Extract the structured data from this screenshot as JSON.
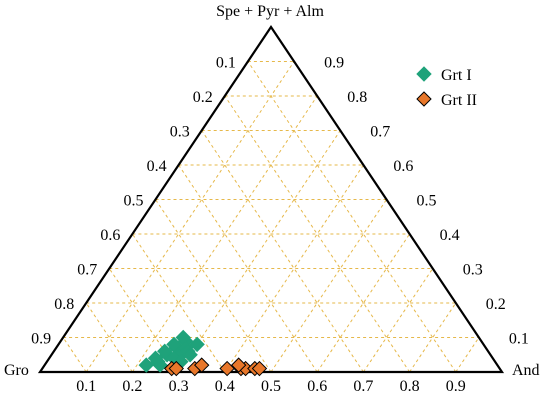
{
  "chart_data": {
    "type": "scatter",
    "subtype": "ternary",
    "apex_labels": {
      "top": "Spe + Pyr + Alm",
      "bottom_left": "Gro",
      "bottom_right": "And"
    },
    "ticks": {
      "bottom": [
        "0.1",
        "0.2",
        "0.3",
        "0.4",
        "0.5",
        "0.6",
        "0.7",
        "0.8",
        "0.9"
      ],
      "left": [
        "0.1",
        "0.2",
        "0.3",
        "0.4",
        "0.5",
        "0.6",
        "0.7",
        "0.8",
        "0.9"
      ],
      "right": [
        "0.9",
        "0.8",
        "0.7",
        "0.6",
        "0.5",
        "0.4",
        "0.3",
        "0.2",
        "0.1"
      ]
    },
    "grid": true,
    "grid_color": "#e6b84a",
    "legend_position": "top-right",
    "series": [
      {
        "name": "Grt I",
        "marker": "diamond",
        "color": "#1fa27a",
        "points": [
          {
            "and": 0.24,
            "spa": 0.03
          },
          {
            "and": 0.23,
            "spa": 0.04
          },
          {
            "and": 0.25,
            "spa": 0.05
          },
          {
            "and": 0.24,
            "spa": 0.06
          },
          {
            "and": 0.26,
            "spa": 0.07
          },
          {
            "and": 0.25,
            "spa": 0.08
          },
          {
            "and": 0.27,
            "spa": 0.09
          },
          {
            "and": 0.26,
            "spa": 0.1
          },
          {
            "and": 0.28,
            "spa": 0.05
          },
          {
            "and": 0.28,
            "spa": 0.07
          },
          {
            "and": 0.29,
            "spa": 0.06
          },
          {
            "and": 0.3,
            "spa": 0.08
          },
          {
            "and": 0.27,
            "spa": 0.04
          },
          {
            "and": 0.3,
            "spa": 0.05
          },
          {
            "and": 0.25,
            "spa": 0.02
          },
          {
            "and": 0.22,
            "spa": 0.02
          },
          {
            "and": 0.29,
            "spa": 0.03
          }
        ]
      },
      {
        "name": "Grt II",
        "marker": "diamond",
        "color": "#e8772a",
        "points": [
          {
            "and": 0.28,
            "spa": 0.01
          },
          {
            "and": 0.29,
            "spa": 0.01
          },
          {
            "and": 0.33,
            "spa": 0.01
          },
          {
            "and": 0.34,
            "spa": 0.02
          },
          {
            "and": 0.4,
            "spa": 0.01
          },
          {
            "and": 0.43,
            "spa": 0.01
          },
          {
            "and": 0.44,
            "spa": 0.01
          },
          {
            "and": 0.46,
            "spa": 0.01
          },
          {
            "and": 0.47,
            "spa": 0.01
          },
          {
            "and": 0.42,
            "spa": 0.02
          }
        ]
      }
    ]
  }
}
